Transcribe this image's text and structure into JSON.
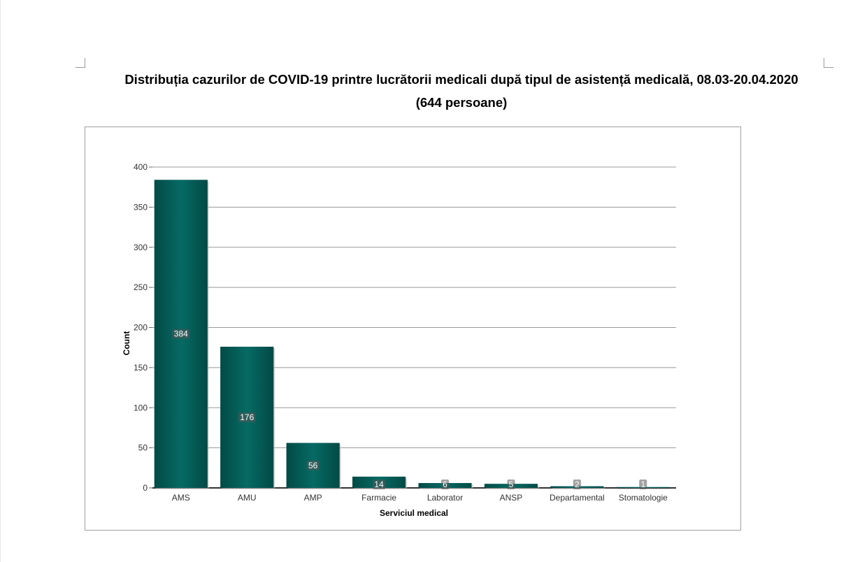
{
  "title_line1": "Distribuția cazurilor de COVID-19 printre lucrătorii medicali după tipul de asistență medicală, 08.03-20.04.2020",
  "title_line2": "(644 persoane)",
  "chart_data": {
    "type": "bar",
    "categories": [
      "AMS",
      "AMU",
      "AMP",
      "Farmacie",
      "Laborator",
      "ANSP",
      "Departamental",
      "Stomatologie"
    ],
    "values": [
      384,
      176,
      56,
      14,
      6,
      5,
      2,
      1
    ],
    "xlabel": "Serviciul medical",
    "ylabel": "Count",
    "ylim": [
      0,
      400
    ],
    "yticks": [
      0,
      50,
      100,
      150,
      200,
      250,
      300,
      350,
      400
    ],
    "grid": true,
    "bar_color": "#03605A",
    "data_labels": true
  }
}
